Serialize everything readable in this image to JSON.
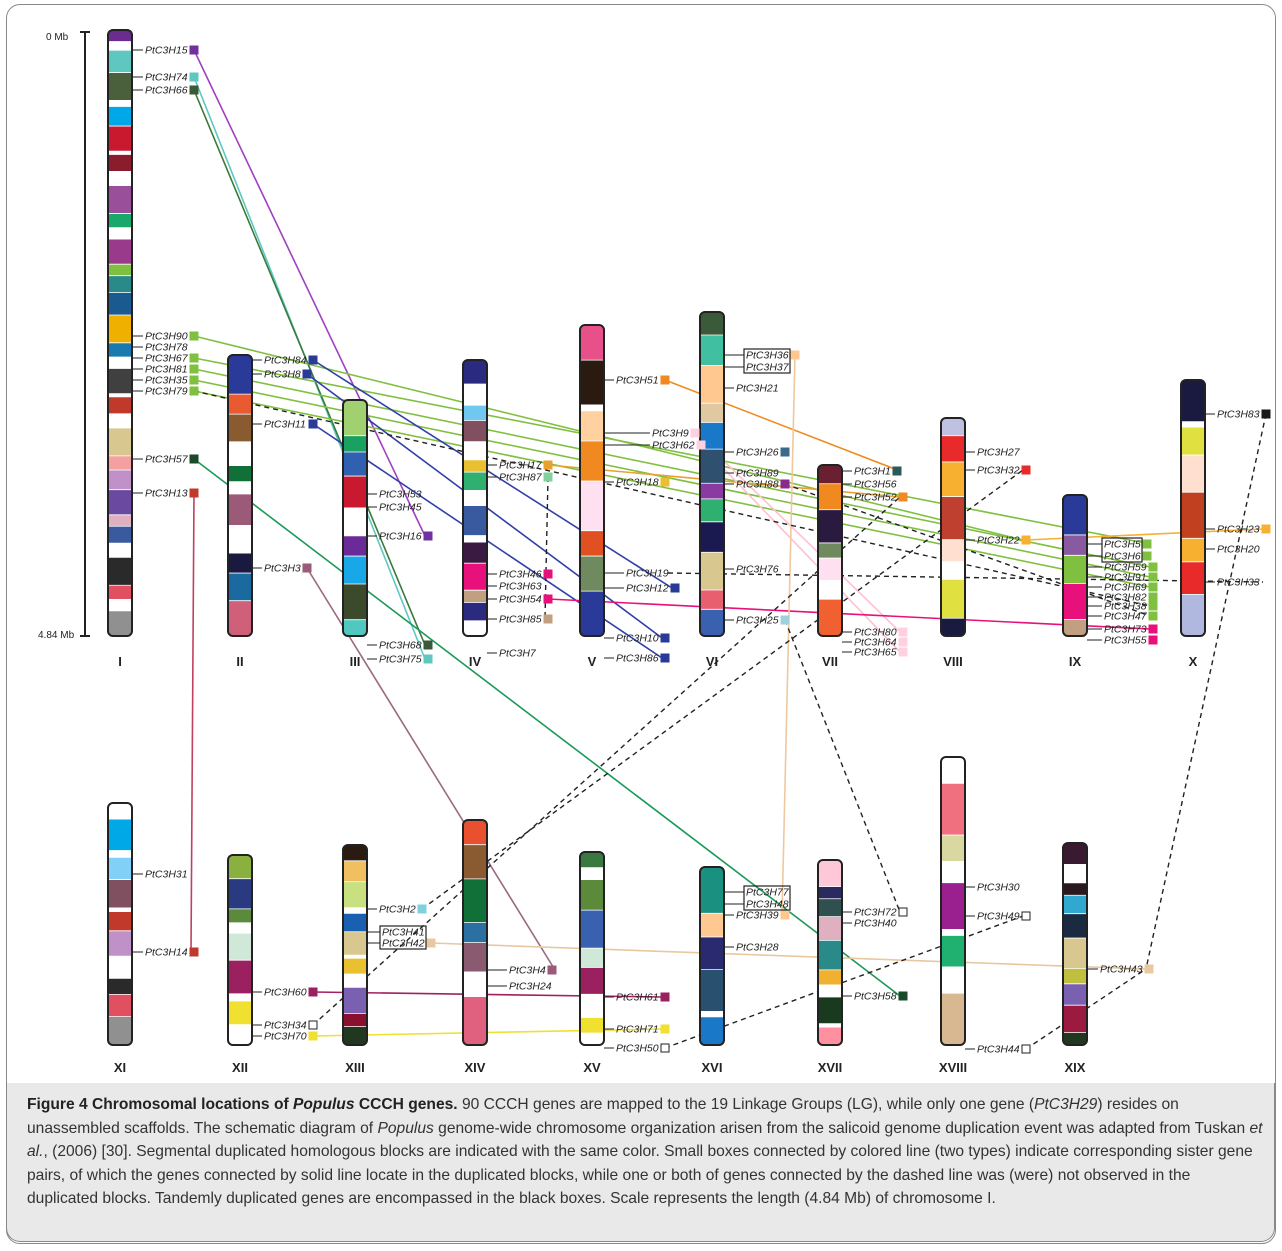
{
  "figure": {
    "scale": {
      "top_label": "0 Mb",
      "bottom_label": "4.84 Mb"
    },
    "caption": {
      "title_prefix": "Figure 4 Chromosomal locations of ",
      "title_species": "Populus",
      "title_suffix": " CCCH genes.",
      "s1": " 90 CCCH genes are mapped to the 19 Linkage Groups (LG), while only one gene (",
      "gene": "PtC3H29",
      "s2": ") resides on unassembled scaffolds.  The schematic diagram of ",
      "species2": "Populus",
      "s3": " genome-wide chromosome organization arisen from the salicoid genome duplication event was adapted from Tuskan ",
      "etal": "et al.",
      "s4": ", (2006) [30]. Segmental duplicated homologous blocks are indicated with the same color. Small boxes connected by colored line (two types) indicate corresponding sister gene pairs, of which the genes connected by solid line locate in the duplicated blocks, while one or both of genes connected by the dashed line was (were) not observed in the duplicated blocks. Tandemly duplicated genes are encompassed in the black boxes. Scale represents the length (4.84 Mb) of chromosome I."
    }
  },
  "chromosomes": [
    {
      "id": "I",
      "label": "I",
      "colors": [
        "#6a2c8f",
        "#ffffff",
        "#5ec8c0",
        "#4a5f3c",
        "#ffffff",
        "#00a8e8",
        "#c8192e",
        "#ffffff",
        "#8a1c2c",
        "#ffffff",
        "#9a4f9a",
        "#1aa86a",
        "#ffffff",
        "#9a3a8a",
        "#80c040",
        "#2a8a8a",
        "#1a5a90",
        "#f0b000",
        "#1a7ab0",
        "#ffffff",
        "#404040",
        "#ffffff",
        "#c0392b",
        "#ffffff",
        "#d8c890",
        "#f4a0a0",
        "#c090c8",
        "#6a4aa0",
        "#e0b0c0",
        "#3a5aa0",
        "#ffffff",
        "#2a2a2a",
        "#e05060",
        "#ffffff",
        "#909090"
      ]
    },
    {
      "id": "II",
      "label": "II",
      "colors": [
        "#2a3a98",
        "#e85a30",
        "#8a5a30",
        "#ffffff",
        "#107038",
        "#ffffff",
        "#9a5a78",
        "#ffffff",
        "#1a1a40",
        "#1a6aa0",
        "#d0607a"
      ]
    },
    {
      "id": "III",
      "label": "III",
      "colors": [
        "#a0d070",
        "#1aa060",
        "#3060b0",
        "#c8192e",
        "#ffffff",
        "#6a2a98",
        "#18a8e8",
        "#3a4a2a",
        "#50c8c0"
      ]
    },
    {
      "id": "IV",
      "label": "IV",
      "colors": [
        "#2a2a80",
        "#ffffff",
        "#70c8f0",
        "#805060",
        "#ffffff",
        "#e8c030",
        "#30b070",
        "#ffffff",
        "#3a5aa0",
        "#ffffff",
        "#3a1a40",
        "#e8107a",
        "#c0a080",
        "#2a2a80",
        "#ffffff"
      ]
    },
    {
      "id": "V",
      "label": "V",
      "colors": [
        "#e8508a",
        "#2a1a10",
        "#ffffff",
        "#ffd0a0",
        "#f08a20",
        "#ffe0f0",
        "#e05020",
        "#708a60",
        "#2a3a98"
      ]
    },
    {
      "id": "VI",
      "label": "VI",
      "colors": [
        "#3a5a3a",
        "#40c0a0",
        "#ffc890",
        "#e0c8a0",
        "#1a78c8",
        "#305070",
        "#8a3aa0",
        "#30b070",
        "#1a1a50",
        "#d8c890",
        "#e86070",
        "#3a60b0"
      ]
    },
    {
      "id": "VII",
      "label": "VII",
      "colors": [
        "#6a2030",
        "#f08a20",
        "#2a1a40",
        "#708a60",
        "#ffe0f0",
        "#ffffff",
        "#f06030"
      ]
    },
    {
      "id": "VIII",
      "label": "VIII",
      "colors": [
        "#c0c0e0",
        "#e82a2a",
        "#f8b030",
        "#c04030",
        "#ffe0d0",
        "#ffffff",
        "#e0e040",
        "#1a1a40"
      ]
    },
    {
      "id": "IX",
      "label": "IX",
      "colors": [
        "#2a3a98",
        "#8a5aa0",
        "#80c040",
        "#e8107a",
        "#c0a080"
      ]
    },
    {
      "id": "X",
      "label": "X",
      "colors": [
        "#1a1a40",
        "#ffffff",
        "#e0e040",
        "#ffe0d0",
        "#c04020",
        "#f8b030",
        "#e82a2a",
        "#b0b8e0"
      ]
    },
    {
      "id": "XI",
      "label": "XI",
      "colors": [
        "#ffffff",
        "#00a8e8",
        "#ffffff",
        "#80d0f8",
        "#805060",
        "#ffffff",
        "#c0392b",
        "#c090c8",
        "#ffffff",
        "#2a2a2a",
        "#e05060",
        "#909090"
      ]
    },
    {
      "id": "XII",
      "label": "XII",
      "colors": [
        "#8ab040",
        "#2a3a80",
        "#5a8a3a",
        "#ffffff",
        "#d0e8d8",
        "#9a2060",
        "#ffffff",
        "#f0e030",
        "#ffffff"
      ]
    },
    {
      "id": "XIII",
      "label": "XIII",
      "colors": [
        "#2a1a10",
        "#f0c060",
        "#c8e080",
        "#ffffff",
        "#1a60b0",
        "#d8c890",
        "#ffffff",
        "#e8c030",
        "#ffffff",
        "#7a60b0",
        "#8a1030",
        "#203820"
      ]
    },
    {
      "id": "XIV",
      "label": "XIV",
      "colors": [
        "#e85030",
        "#8a5a30",
        "#107038",
        "#2a70a0",
        "#8a5a70",
        "#ffffff",
        "#e06080"
      ]
    },
    {
      "id": "XV",
      "label": "XV",
      "colors": [
        "#3a7a40",
        "#ffffff",
        "#5a8a3a",
        "#3a60b0",
        "#d0e8d8",
        "#9a2060",
        "#ffffff",
        "#f0e030",
        "#ffffff"
      ]
    },
    {
      "id": "XVI",
      "label": "XVI",
      "colors": [
        "#1a9080",
        "#ffc890",
        "#2a2a70",
        "#2a5070",
        "#ffffff",
        "#1a78c8"
      ]
    },
    {
      "id": "XVII",
      "label": "XVII",
      "colors": [
        "#ffc8d8",
        "#2a2a60",
        "#305050",
        "#e0b0c0",
        "#2a8a8a",
        "#f0b030",
        "#ffffff",
        "#1a3a20",
        "#ffffff",
        "#ff90a0"
      ]
    },
    {
      "id": "XVIII",
      "label": "XVIII",
      "colors": [
        "#ffffff",
        "#f07080",
        "#d8d8a0",
        "#ffffff",
        "#9a2090",
        "#ffffff",
        "#20b070",
        "#ffffff",
        "#d8b890"
      ]
    },
    {
      "id": "XIX",
      "label": "XIX",
      "colors": [
        "#3a1a30",
        "#ffffff",
        "#2a1a20",
        "#30a8d0",
        "#1a2a40",
        "#d8c890",
        "#c0c040",
        "#7a60b0",
        "#9a1a40",
        "#203820"
      ]
    }
  ],
  "genes": [
    {
      "t": "PtC3H15",
      "c": "#7030a0"
    },
    {
      "t": "PtC3H74",
      "c": "#5ec8c0"
    },
    {
      "t": "PtC3H66",
      "c": "#3a5a3a"
    },
    {
      "t": "PtC3H90",
      "c": "#80c040"
    },
    {
      "t": "PtC3H78",
      "c": ""
    },
    {
      "t": "PtC3H67",
      "c": "#80c040"
    },
    {
      "t": "PtC3H81",
      "c": "#80c040"
    },
    {
      "t": "PtC3H35",
      "c": "#80c040"
    },
    {
      "t": "PtC3H79",
      "c": "#80c040"
    },
    {
      "t": "PtC3H57",
      "c": "#1a4a2a"
    },
    {
      "t": "PtC3H13",
      "c": "#c0392b"
    },
    {
      "t": "PtC3H84",
      "c": "#2a3a98"
    },
    {
      "t": "PtC3H8",
      "c": "#2a3a98"
    },
    {
      "t": "PtC3H11",
      "c": "#2a3a98"
    },
    {
      "t": "PtC3H3",
      "c": "#9a5a78"
    },
    {
      "t": "PtC3H53",
      "c": ""
    },
    {
      "t": "PtC3H45",
      "c": ""
    },
    {
      "t": "PtC3H16",
      "c": "#7030a0"
    },
    {
      "t": "PtC3H68",
      "c": "#3a5a3a"
    },
    {
      "t": "PtC3H75",
      "c": "#5ec8c0"
    },
    {
      "t": "PtC3H17",
      "c": "#e8a030"
    },
    {
      "t": "PtC3H87",
      "c": "#80d0a0"
    },
    {
      "t": "PtC3H46",
      "c": "#e8107a"
    },
    {
      "t": "PtC3H63",
      "c": ""
    },
    {
      "t": "PtC3H54",
      "c": "#e8107a"
    },
    {
      "t": "PtC3H85",
      "c": "#c0a080"
    },
    {
      "t": "PtC3H7",
      "c": ""
    },
    {
      "t": "PtC3H51",
      "c": "#f08a20"
    },
    {
      "t": "PtC3H9",
      "c": "#ffd0e0"
    },
    {
      "t": "PtC3H62",
      "c": "#ffd0e0"
    },
    {
      "t": "PtC3H18",
      "c": "#e8c030"
    },
    {
      "t": "PtC3H19",
      "c": ""
    },
    {
      "t": "PtC3H12",
      "c": "#2a3a98"
    },
    {
      "t": "PtC3H10",
      "c": "#2a3a98"
    },
    {
      "t": "PtC3H86",
      "c": "#2a3a98"
    },
    {
      "t": "PtC3H36",
      "c": "#ffc890"
    },
    {
      "t": "PtC3H37",
      "c": ""
    },
    {
      "t": "PtC3H21",
      "c": ""
    },
    {
      "t": "PtC3H26",
      "c": "#3a6a8a"
    },
    {
      "t": "PtC3H89",
      "c": ""
    },
    {
      "t": "PtC3H88",
      "c": "#8a2a8a"
    },
    {
      "t": "PtC3H76",
      "c": ""
    },
    {
      "t": "PtC3H25",
      "c": "#a0d0e0"
    },
    {
      "t": "PtC3H1",
      "c": "#2a5a5a"
    },
    {
      "t": "PtC3H56",
      "c": ""
    },
    {
      "t": "PtC3H52",
      "c": "#f08a20"
    },
    {
      "t": "PtC3H80",
      "c": "#ffd0e0"
    },
    {
      "t": "PtC3H64",
      "c": "#ffd0e0"
    },
    {
      "t": "PtC3H65",
      "c": "#ffd0e0"
    },
    {
      "t": "PtC3H27",
      "c": ""
    },
    {
      "t": "PtC3H32",
      "c": "#e82a2a"
    },
    {
      "t": "PtC3H22",
      "c": "#f8b030"
    },
    {
      "t": "PtC3H5",
      "c": "#80c040"
    },
    {
      "t": "PtC3H6",
      "c": "#80c040"
    },
    {
      "t": "PtC3H59",
      "c": "#80c040"
    },
    {
      "t": "PtC3H91",
      "c": "#80c040"
    },
    {
      "t": "PtC3H69",
      "c": "#80c040"
    },
    {
      "t": "PtC3H82",
      "c": "#80c040"
    },
    {
      "t": "PtC3H38",
      "c": "#80c040"
    },
    {
      "t": "PtC3H47",
      "c": "#80c040"
    },
    {
      "t": "PtC3H73",
      "c": "#e8107a"
    },
    {
      "t": "PtC3H55",
      "c": "#e8107a"
    },
    {
      "t": "PtC3H83",
      "c": "#1a1a1a"
    },
    {
      "t": "PtC3H23",
      "c": "#f8b030"
    },
    {
      "t": "PtC3H20",
      "c": ""
    },
    {
      "t": "PtC3H33",
      "c": ""
    },
    {
      "t": "PtC3H31",
      "c": ""
    },
    {
      "t": "PtC3H14",
      "c": "#c0392b"
    },
    {
      "t": "PtC3H60",
      "c": "#9a2060"
    },
    {
      "t": "PtC3H34",
      "c": "#ffffff"
    },
    {
      "t": "PtC3H70",
      "c": "#f0e030"
    },
    {
      "t": "PtC3H2",
      "c": "#80d0e0"
    },
    {
      "t": "PtC3H41",
      "c": ""
    },
    {
      "t": "PtC3H42",
      "c": "#e8c8a0"
    },
    {
      "t": "PtC3H4",
      "c": "#9a5a78"
    },
    {
      "t": "PtC3H24",
      "c": ""
    },
    {
      "t": "PtC3H61",
      "c": "#9a2060"
    },
    {
      "t": "PtC3H71",
      "c": "#f0e030"
    },
    {
      "t": "PtC3H50",
      "c": "#ffffff"
    },
    {
      "t": "PtC3H77",
      "c": ""
    },
    {
      "t": "PtC3H48",
      "c": ""
    },
    {
      "t": "PtC3H39",
      "c": "#ffc890"
    },
    {
      "t": "PtC3H28",
      "c": ""
    },
    {
      "t": "PtC3H72",
      "c": "#ffffff"
    },
    {
      "t": "PtC3H40",
      "c": ""
    },
    {
      "t": "PtC3H58",
      "c": "#1a4a2a"
    },
    {
      "t": "PtC3H30",
      "c": ""
    },
    {
      "t": "PtC3H49",
      "c": "#ffffff"
    },
    {
      "t": "PtC3H44",
      "c": "#ffffff"
    },
    {
      "t": "PtC3H43",
      "c": "#e8c8a0"
    }
  ]
}
